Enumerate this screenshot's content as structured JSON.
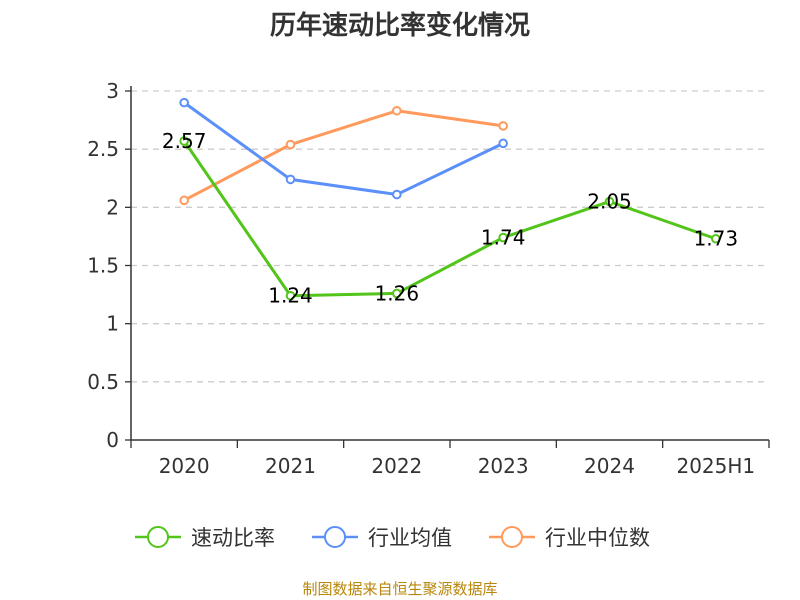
{
  "chart_data": {
    "type": "line",
    "title": "历年速动比率变化情况",
    "categories": [
      "2020",
      "2021",
      "2022",
      "2023",
      "2024",
      "2025H1"
    ],
    "yticks": [
      "0",
      "0.5",
      "1",
      "1.5",
      "2",
      "2.5",
      "3"
    ],
    "ylim": [
      0,
      3
    ],
    "grid": true,
    "legend_position": "bottom",
    "series": [
      {
        "name": "速动比率",
        "color": "#52c41a",
        "values": [
          2.57,
          1.24,
          1.26,
          1.74,
          2.05,
          1.73
        ],
        "labels": [
          "2.57",
          "1.24",
          "1.26",
          "1.74",
          "2.05",
          "1.73"
        ]
      },
      {
        "name": "行业均值",
        "color": "#5b8ff9",
        "values": [
          2.9,
          2.24,
          2.11,
          2.55,
          null,
          null
        ]
      },
      {
        "name": "行业中位数",
        "color": "#ff9a5c",
        "values": [
          2.06,
          2.54,
          2.83,
          2.7,
          null,
          null
        ]
      }
    ]
  },
  "source": "制图数据来自恒生聚源数据库"
}
